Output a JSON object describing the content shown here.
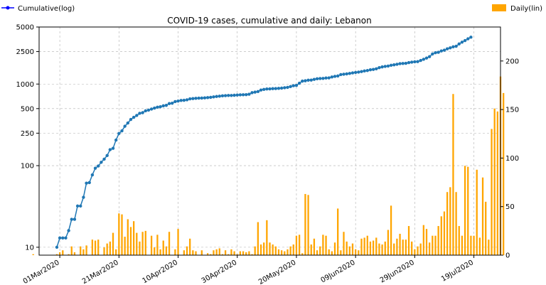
{
  "chart_data": {
    "type": "bar+line",
    "title": "COVID-19 cases, cumulative and daily: Lebanon",
    "legend": {
      "left": {
        "label": "Cumulative(log)",
        "color": "#0000ff"
      },
      "right": {
        "label": "Daily(lin)",
        "color": "#ffa500"
      }
    },
    "x_tick_labels": [
      "01Mar2020",
      "21Mar2020",
      "10Apr2020",
      "30Apr2020",
      "20May2020",
      "09Jun2020",
      "29Jun2020",
      "19Jul2020"
    ],
    "y_left": {
      "scale": "log",
      "range": [
        8,
        5000
      ],
      "ticks": [
        10,
        100,
        250,
        500,
        1000,
        2500,
        5000
      ],
      "tick_labels": [
        "10",
        "100",
        "250",
        "500",
        "1000",
        "2500",
        "5000"
      ]
    },
    "y_right": {
      "scale": "linear",
      "range": [
        0,
        235
      ],
      "ticks": [
        0,
        50,
        100,
        150,
        200
      ],
      "tick_labels": [
        "0",
        "50",
        "100",
        "150",
        "200"
      ]
    },
    "grid": true,
    "x_day_range": [
      -7,
      149
    ],
    "cumulative": {
      "color": "#1f77b4",
      "start_date": "2020-02-29",
      "values": [
        10,
        13,
        13,
        13,
        16,
        22,
        22,
        32,
        32,
        41,
        61,
        62,
        77,
        93,
        99,
        110,
        120,
        133,
        157,
        163,
        206,
        248,
        267,
        304,
        333,
        368,
        391,
        412,
        438,
        446,
        470,
        479,
        494,
        508,
        520,
        527,
        541,
        548,
        576,
        582,
        609,
        619,
        630,
        632,
        641,
        658,
        663,
        668,
        672,
        673,
        677,
        682,
        688,
        696,
        704,
        710,
        717,
        721,
        725,
        725,
        729,
        733,
        737,
        740,
        741,
        750,
        784,
        796,
        809,
        845,
        859,
        870,
        872,
        878,
        880,
        886,
        891,
        902,
        911,
        931,
        954,
        961,
        1024,
        1086,
        1097,
        1114,
        1119,
        1140,
        1161,
        1168,
        1172,
        1186,
        1191,
        1220,
        1242,
        1256,
        1306,
        1320,
        1331,
        1350,
        1370,
        1388,
        1402,
        1422,
        1446,
        1464,
        1495,
        1510,
        1536,
        1587,
        1622,
        1646,
        1662,
        1697,
        1719,
        1745,
        1778,
        1788,
        1796,
        1830,
        1855,
        1873,
        1885,
        1946,
        2011,
        2082,
        2168,
        2334,
        2419,
        2451,
        2542,
        2599,
        2700,
        2775,
        2859,
        2905,
        3104,
        3260,
        3407,
        3582,
        3750
      ]
    },
    "daily": {
      "color": "#ffa500",
      "start_date": "2020-02-21",
      "values": [
        1,
        0,
        0,
        0,
        0,
        0,
        0,
        0,
        1,
        3,
        5,
        0,
        1,
        9,
        3,
        0,
        9,
        6,
        10,
        0,
        16,
        15,
        16,
        0,
        8,
        12,
        14,
        23,
        6,
        43,
        42,
        19,
        37,
        29,
        35,
        23,
        14,
        24,
        25,
        0,
        20,
        8,
        21,
        6,
        15,
        9,
        24,
        0,
        6,
        27,
        0,
        5,
        9,
        17,
        5,
        4,
        0,
        5,
        0,
        2,
        1,
        5,
        6,
        7,
        1,
        5,
        1,
        6,
        4,
        1,
        4,
        4,
        3,
        4,
        1,
        9,
        34,
        11,
        13,
        36,
        13,
        11,
        9,
        6,
        5,
        4,
        6,
        9,
        11,
        20,
        21,
        2,
        63,
        62,
        11,
        17,
        5,
        9,
        21,
        20,
        6,
        4,
        13,
        48,
        5,
        24,
        14,
        9,
        12,
        6,
        5,
        17,
        18,
        20,
        14,
        15,
        18,
        12,
        11,
        14,
        26,
        51,
        12,
        17,
        22,
        16,
        16,
        30,
        14,
        6,
        9,
        12,
        31,
        27,
        13,
        20,
        20,
        30,
        40,
        45,
        65,
        70,
        166,
        65,
        30,
        20,
        92,
        91,
        20,
        20,
        88,
        18,
        80,
        55,
        16,
        130,
        151,
        148,
        184,
        167
      ]
    }
  }
}
